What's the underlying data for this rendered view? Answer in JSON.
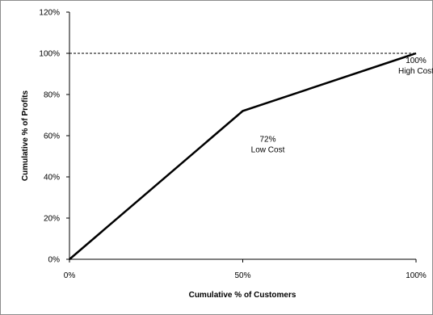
{
  "chart_data": {
    "type": "line",
    "title": "",
    "xlabel": "Cumulative % of Customers",
    "ylabel": "Cumulative % of Profits",
    "xlim": [
      0,
      100
    ],
    "ylim": [
      0,
      120
    ],
    "x_ticks": [
      0,
      50,
      100
    ],
    "x_tick_labels": [
      "0%",
      "50%",
      "100%"
    ],
    "y_ticks": [
      0,
      20,
      40,
      60,
      80,
      100,
      120
    ],
    "y_tick_labels": [
      "0%",
      "20%",
      "40%",
      "60%",
      "80%",
      "100%",
      "120%"
    ],
    "grid": false,
    "legend": "none",
    "series": [
      {
        "x": [
          0,
          50,
          100
        ],
        "y": [
          0,
          72,
          100
        ],
        "color": "#000000"
      }
    ],
    "reference_lines": [
      {
        "orientation": "horizontal",
        "y": 100,
        "style": "dashed",
        "color": "#000000"
      }
    ],
    "annotations": [
      {
        "x": 50,
        "y": 72,
        "lines": [
          "72%",
          "Low Cost"
        ]
      },
      {
        "x": 100,
        "y": 100,
        "lines": [
          "100%",
          "High Cost"
        ]
      }
    ]
  }
}
